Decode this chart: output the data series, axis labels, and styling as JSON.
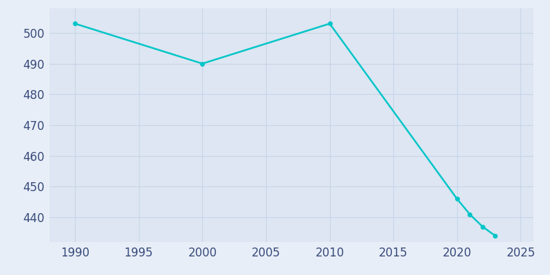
{
  "years": [
    1990,
    2000,
    2010,
    2020,
    2021,
    2022,
    2023
  ],
  "population": [
    503,
    490,
    503,
    446,
    441,
    437,
    434
  ],
  "line_color": "#00C5C8",
  "marker": "o",
  "marker_size": 4,
  "bg_color": "#e8eef7",
  "plot_bg_color": "#dde6f2",
  "grid_color": "#c8d4e8",
  "xlim": [
    1988,
    2026
  ],
  "ylim": [
    432,
    508
  ],
  "yticks": [
    440,
    450,
    460,
    470,
    480,
    490,
    500
  ],
  "xticks": [
    1990,
    1995,
    2000,
    2005,
    2010,
    2015,
    2020,
    2025
  ],
  "tick_color": "#374a7a",
  "tick_fontsize": 12,
  "linewidth": 1.8
}
